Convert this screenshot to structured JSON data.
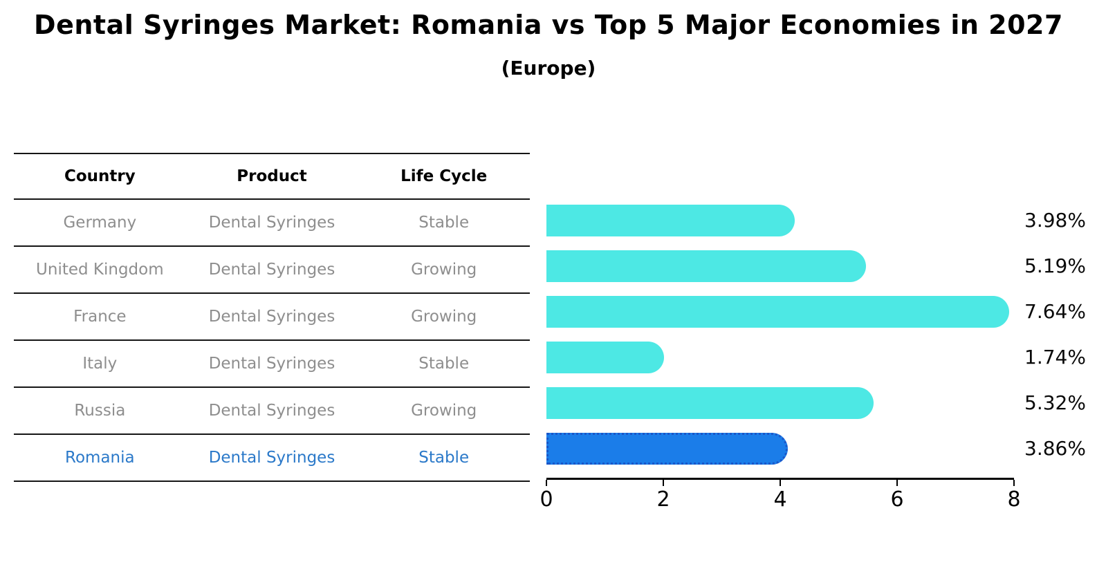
{
  "title": "Dental Syringes Market: Romania vs Top 5 Major Economies in 2027",
  "subtitle": "(Europe)",
  "table": {
    "headers": [
      "Country",
      "Product",
      "Life Cycle"
    ],
    "rows": [
      {
        "country": "Germany",
        "product": "Dental Syringes",
        "life_cycle": "Stable",
        "highlight": false
      },
      {
        "country": "United Kingdom",
        "product": "Dental Syringes",
        "life_cycle": "Growing",
        "highlight": false
      },
      {
        "country": "France",
        "product": "Dental Syringes",
        "life_cycle": "Growing",
        "highlight": false
      },
      {
        "country": "Italy",
        "product": "Dental Syringes",
        "life_cycle": "Stable",
        "highlight": false
      },
      {
        "country": "Russia",
        "product": "Dental Syringes",
        "life_cycle": "Growing",
        "highlight": false
      },
      {
        "country": "Romania",
        "product": "Dental Syringes",
        "life_cycle": "Stable",
        "highlight": true
      }
    ]
  },
  "chart_data": {
    "type": "bar",
    "orientation": "horizontal",
    "title": "Dental Syringes Market: Romania vs Top 5 Major Economies in 2027 (Europe)",
    "categories": [
      "Germany",
      "United Kingdom",
      "France",
      "Italy",
      "Russia",
      "Romania"
    ],
    "values": [
      3.98,
      5.19,
      7.64,
      1.74,
      5.32,
      3.86
    ],
    "value_labels": [
      "3.98%",
      "5.19%",
      "7.64%",
      "1.74%",
      "5.32%",
      "3.86%"
    ],
    "xlim": [
      0,
      8
    ],
    "xticks": [
      0,
      2,
      4,
      6,
      8
    ],
    "grid": false,
    "legend": false,
    "highlight_index": 5
  },
  "colors": {
    "bar": "#4DE8E4",
    "highlight_bar": "#1B7DE9",
    "highlight_bar_border": "#1A56C8",
    "highlight_text": "#2B79C9",
    "row_text": "#8E8E8E",
    "header_text": "#000000",
    "value_text": "#0A0A0A",
    "axis": "#000000"
  }
}
